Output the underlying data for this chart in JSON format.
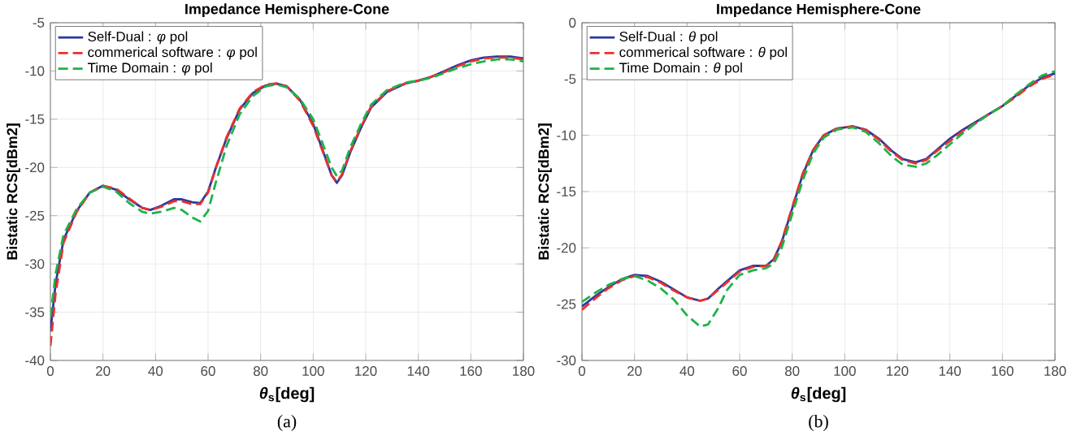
{
  "chart_data": [
    {
      "type": "line",
      "title": "Impedance Hemisphere-Cone",
      "xlabel": "*θ*$_{s}$[deg]",
      "ylabel": "Bistatic RCS[dBm2]",
      "annotations": [
        "(a)"
      ],
      "xlim": [
        0,
        180
      ],
      "xticks": [
        0,
        20,
        40,
        60,
        80,
        100,
        120,
        140,
        160,
        180
      ],
      "ylim": [
        -40,
        -5
      ],
      "yticks": [
        -40,
        -35,
        -30,
        -25,
        -20,
        -15,
        -10,
        -5
      ],
      "grid": true,
      "legend": "top left",
      "x": [
        0,
        2,
        5,
        10,
        15,
        20,
        25,
        30,
        35,
        38,
        42,
        47,
        50,
        54,
        57,
        60,
        63,
        67,
        72,
        77,
        82,
        86,
        90,
        95,
        100,
        104,
        107,
        109,
        111,
        114,
        118,
        122,
        128,
        135,
        140,
        145,
        150,
        155,
        160,
        165,
        170,
        175,
        180
      ],
      "series": [
        {
          "name": "Self-Dual : *φ* pol",
          "color": "#2b3a9e",
          "line_style": "solid",
          "values": [
            -37,
            -32,
            -27.5,
            -24.5,
            -22.6,
            -21.9,
            -22.3,
            -23.3,
            -24.2,
            -24.4,
            -24,
            -23.3,
            -23.3,
            -23.6,
            -23.7,
            -22.5,
            -20,
            -17,
            -14,
            -12.3,
            -11.5,
            -11.3,
            -11.6,
            -13,
            -15.5,
            -18.5,
            -20.8,
            -21.6,
            -20.8,
            -18.5,
            -16,
            -13.8,
            -12.2,
            -11.3,
            -11,
            -10.6,
            -10,
            -9.4,
            -8.9,
            -8.6,
            -8.5,
            -8.5,
            -8.7
          ]
        },
        {
          "name": "commerical software : *φ* pol",
          "color": "#e8302f",
          "line_style": "dashed",
          "values": [
            -38.5,
            -33,
            -27.8,
            -24.6,
            -22.6,
            -21.9,
            -22.2,
            -23.2,
            -24.2,
            -24.4,
            -24.1,
            -23.5,
            -23.5,
            -23.8,
            -23.8,
            -22.6,
            -20,
            -16.9,
            -13.9,
            -12.2,
            -11.4,
            -11.3,
            -11.6,
            -13.1,
            -15.7,
            -18.6,
            -20.8,
            -21.5,
            -20.7,
            -18.4,
            -15.9,
            -13.7,
            -12.1,
            -11.3,
            -11,
            -10.6,
            -10.1,
            -9.5,
            -9,
            -8.7,
            -8.6,
            -8.6,
            -8.8
          ]
        },
        {
          "name": "Time Domain : *φ* pol",
          "color": "#1fb24a",
          "line_style": "dashed",
          "values": [
            -35.5,
            -31,
            -27,
            -24.3,
            -22.6,
            -22,
            -22.5,
            -23.7,
            -24.6,
            -24.8,
            -24.6,
            -24.2,
            -24.4,
            -25.2,
            -25.6,
            -24.5,
            -21.5,
            -17.8,
            -14.5,
            -12.6,
            -11.6,
            -11.4,
            -11.7,
            -12.9,
            -15,
            -17.8,
            -20,
            -20.9,
            -20.3,
            -18,
            -15.6,
            -13.5,
            -12,
            -11.2,
            -11,
            -10.7,
            -10.2,
            -9.7,
            -9.3,
            -9,
            -8.8,
            -8.8,
            -9
          ]
        }
      ]
    },
    {
      "type": "line",
      "title": "Impedance Hemisphere-Cone",
      "xlabel": "*θ*$_{s}$[deg]",
      "ylabel": "Bistatic RCS[dBm2]",
      "annotations": [
        "(b)"
      ],
      "xlim": [
        0,
        180
      ],
      "xticks": [
        0,
        20,
        40,
        60,
        80,
        100,
        120,
        140,
        160,
        180
      ],
      "ylim": [
        -30,
        0
      ],
      "yticks": [
        -30,
        -25,
        -20,
        -15,
        -10,
        -5,
        0
      ],
      "grid": true,
      "legend": "top left",
      "x": [
        0,
        5,
        10,
        15,
        20,
        25,
        30,
        35,
        40,
        45,
        48,
        52,
        55,
        60,
        65,
        70,
        73,
        76,
        80,
        84,
        88,
        92,
        97,
        103,
        108,
        113,
        118,
        122,
        127,
        131,
        135,
        140,
        145,
        150,
        155,
        160,
        165,
        170,
        175,
        180
      ],
      "series": [
        {
          "name": "Self-Dual : *θ* pol",
          "color": "#2b3a9e",
          "line_style": "solid",
          "values": [
            -25.2,
            -24.3,
            -23.5,
            -22.8,
            -22.4,
            -22.5,
            -23,
            -23.7,
            -24.4,
            -24.7,
            -24.5,
            -23.6,
            -23,
            -22,
            -21.6,
            -21.6,
            -21,
            -19.5,
            -16.5,
            -13.5,
            -11.3,
            -10,
            -9.4,
            -9.2,
            -9.5,
            -10.3,
            -11.4,
            -12.1,
            -12.4,
            -12.1,
            -11.3,
            -10.3,
            -9.5,
            -8.8,
            -8.1,
            -7.4,
            -6.5,
            -5.6,
            -4.9,
            -4.5
          ]
        },
        {
          "name": "commerical software : *θ* pol",
          "color": "#e8302f",
          "line_style": "dashed",
          "values": [
            -25.5,
            -24.5,
            -23.6,
            -22.9,
            -22.5,
            -22.6,
            -23.1,
            -23.8,
            -24.4,
            -24.7,
            -24.5,
            -23.7,
            -23.1,
            -22.1,
            -21.7,
            -21.6,
            -21.1,
            -19.4,
            -16.4,
            -13.4,
            -11.3,
            -10,
            -9.4,
            -9.2,
            -9.5,
            -10.4,
            -11.5,
            -12.2,
            -12.5,
            -12.2,
            -11.4,
            -10.5,
            -9.6,
            -8.9,
            -8.1,
            -7.4,
            -6.6,
            -5.7,
            -5,
            -4.6
          ]
        },
        {
          "name": "Time Domain : *θ* pol",
          "color": "#1fb24a",
          "line_style": "dashed",
          "values": [
            -24.8,
            -24,
            -23.3,
            -22.8,
            -22.5,
            -22.9,
            -23.6,
            -24.6,
            -26,
            -27,
            -26.8,
            -25.3,
            -23.8,
            -22.4,
            -22,
            -21.8,
            -21.4,
            -20,
            -17,
            -14,
            -11.6,
            -10.2,
            -9.5,
            -9.3,
            -9.7,
            -10.7,
            -11.9,
            -12.6,
            -12.8,
            -12.5,
            -11.8,
            -10.8,
            -9.8,
            -8.9,
            -8.1,
            -7.4,
            -6.4,
            -5.5,
            -4.7,
            -4.3
          ]
        }
      ]
    }
  ]
}
